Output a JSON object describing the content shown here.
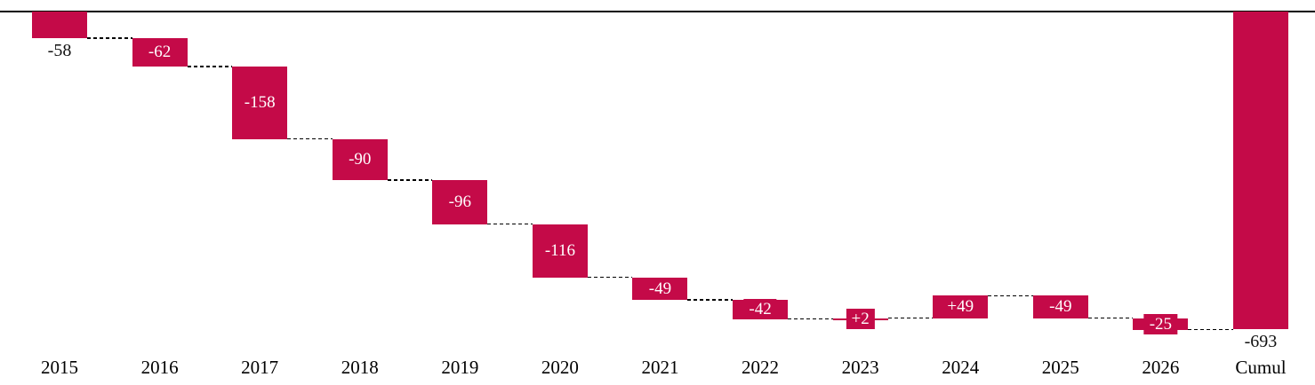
{
  "chart_data": {
    "type": "bar",
    "subtype": "waterfall",
    "title": "",
    "xlabel": "",
    "ylabel": "",
    "categories": [
      "2015",
      "2016",
      "2017",
      "2018",
      "2019",
      "2020",
      "2021",
      "2022",
      "2023",
      "2024",
      "2025",
      "2026",
      "Cumul"
    ],
    "values": [
      -58,
      -62,
      -158,
      -90,
      -96,
      -116,
      -49,
      -42,
      2,
      49,
      -49,
      -25,
      -693
    ],
    "labels": [
      "-58",
      "-62",
      "-158",
      "-90",
      "-96",
      "-116",
      "-49",
      "-42",
      "+2",
      "+49",
      "-49",
      "-25",
      "-693"
    ],
    "is_total": [
      false,
      false,
      false,
      false,
      false,
      false,
      false,
      false,
      false,
      false,
      false,
      false,
      true
    ],
    "label_positions": [
      "below",
      "inside",
      "inside",
      "inside",
      "inside",
      "inside",
      "inside",
      "inside",
      "inside",
      "inside",
      "inside",
      "inside",
      "below"
    ],
    "bar_color": "#C40A48",
    "inside_label_color": "#ffffff",
    "outside_label_color": "#111111",
    "connector_color": "#000000",
    "connector_style": "dashed",
    "axis_line_color": "#000000",
    "baseline_value": 0,
    "ylim": [
      -700,
      0
    ],
    "grid": false,
    "legend": false
  }
}
